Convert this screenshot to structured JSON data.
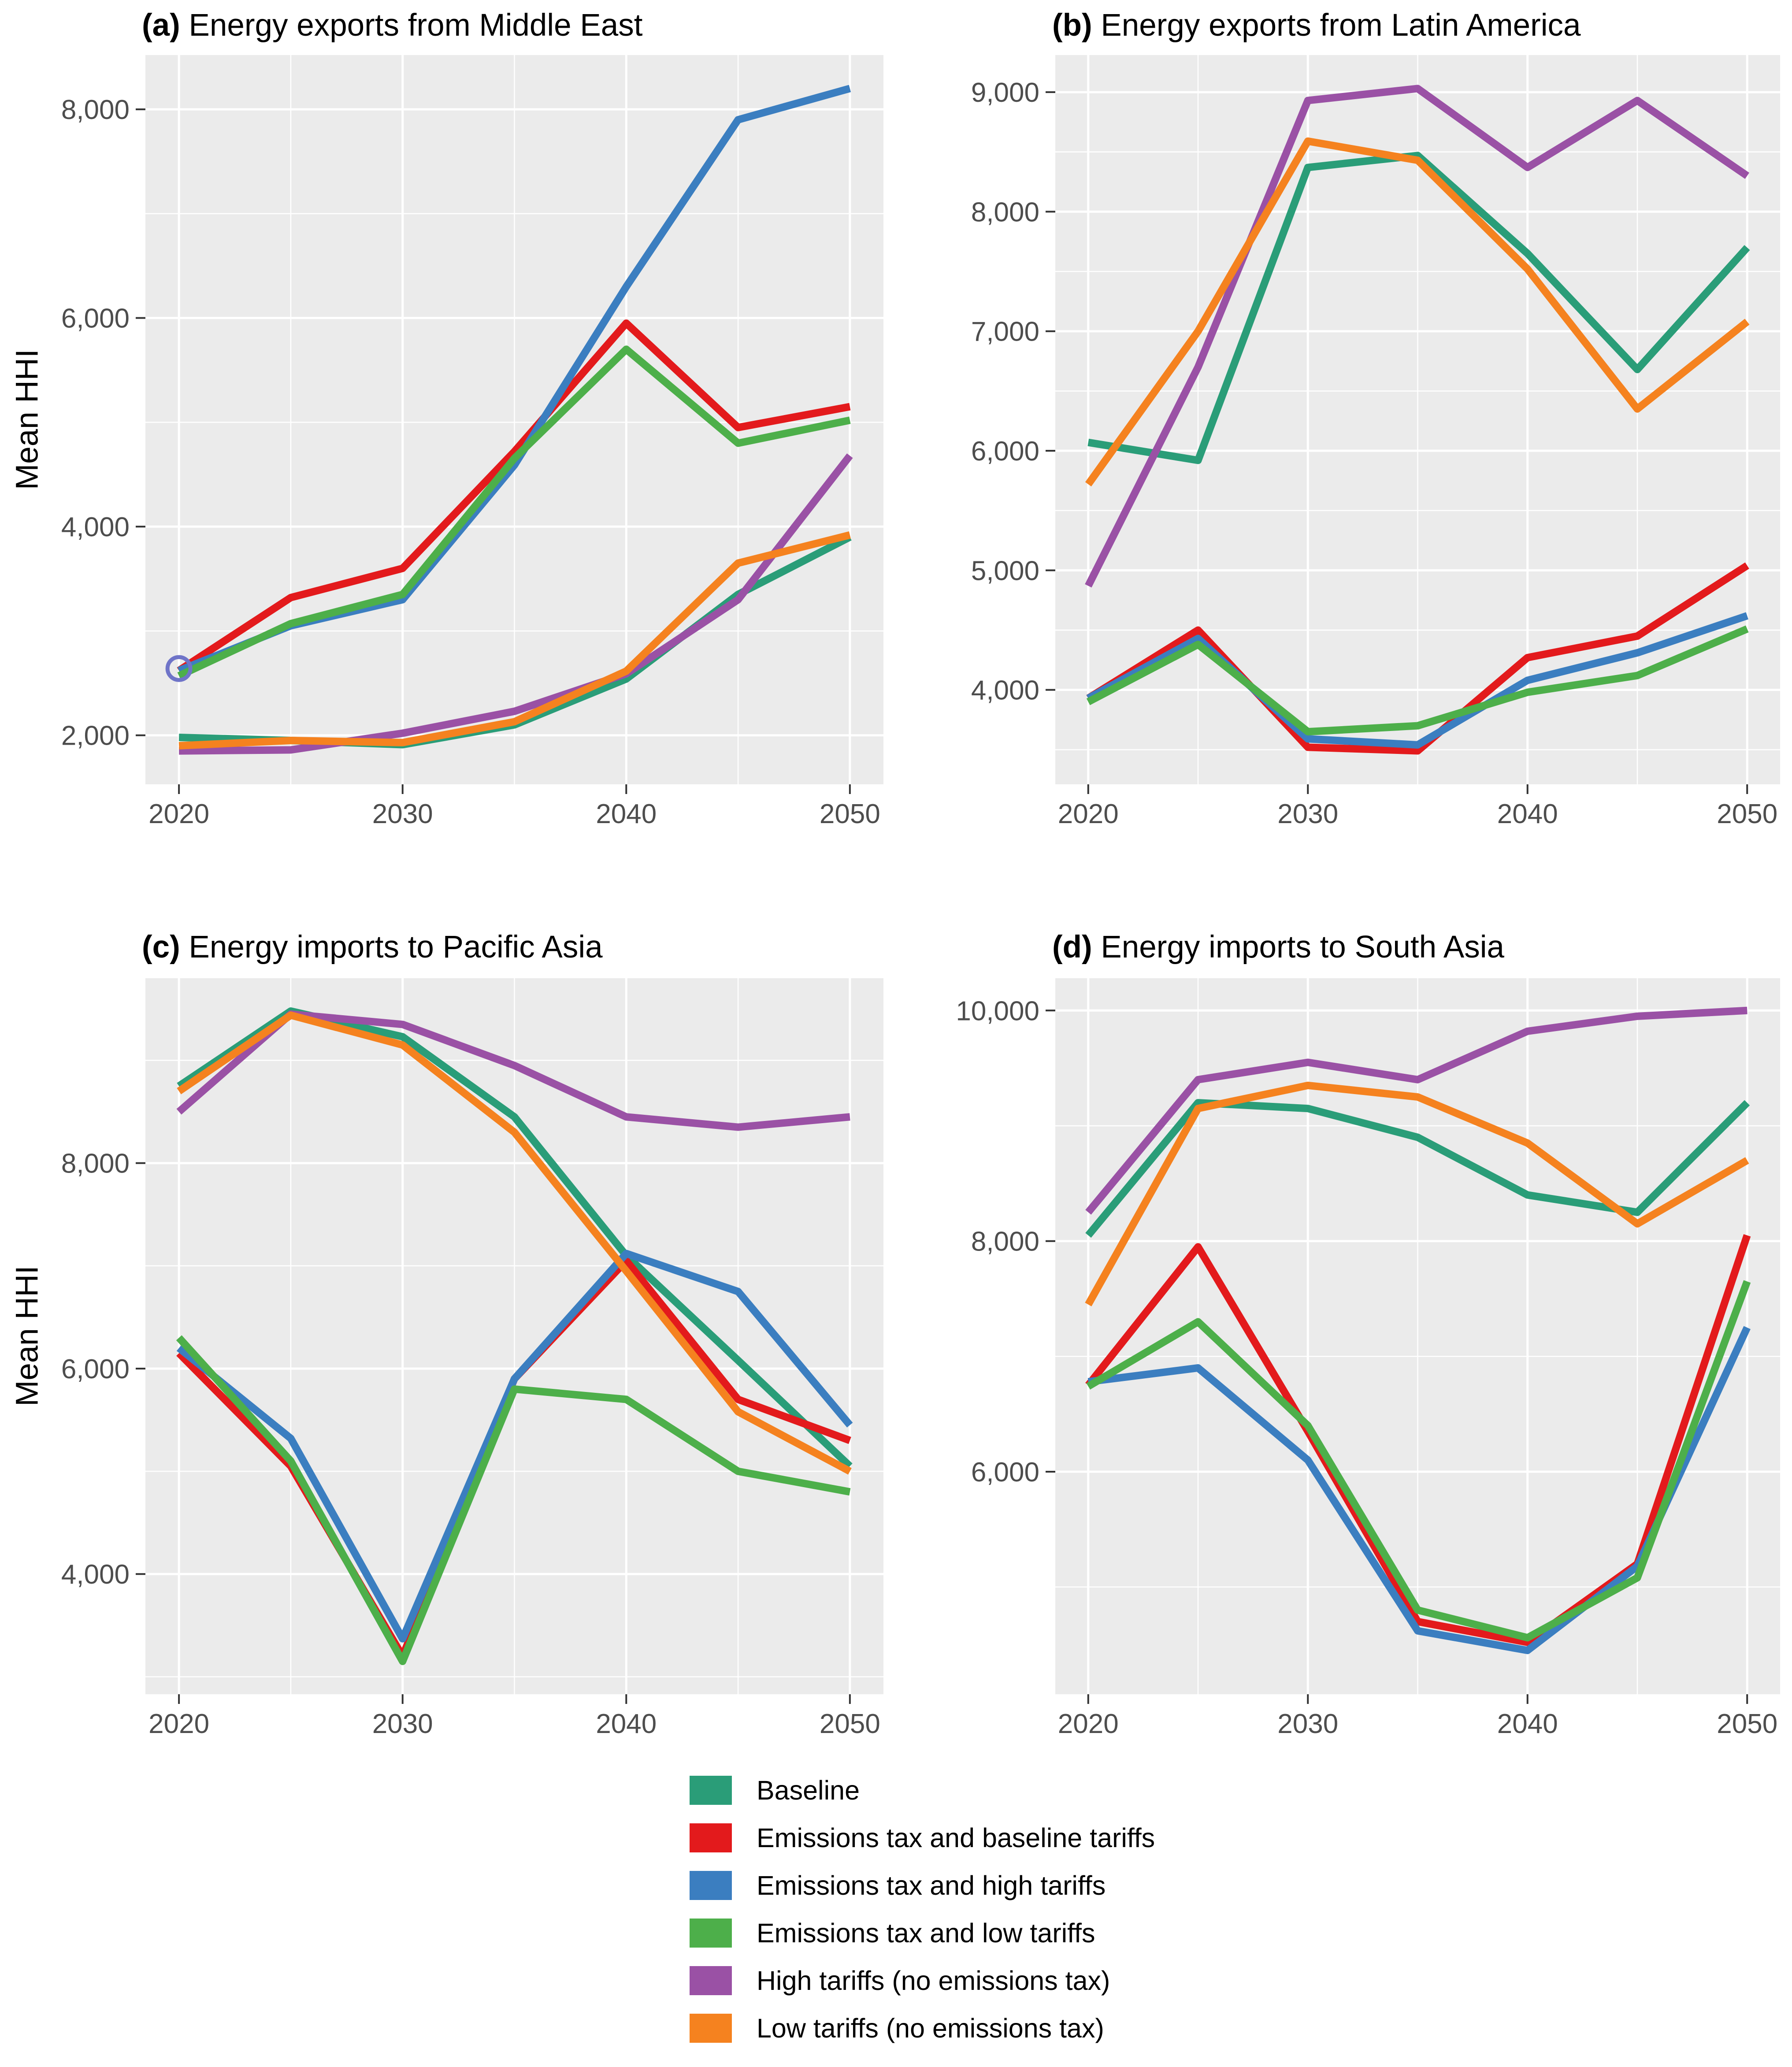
{
  "figure": {
    "ylabel": "Mean HHI"
  },
  "colors": {
    "baseline": "#2A9D78",
    "tax_base": "#E31A1C",
    "tax_high": "#3B7EC0",
    "tax_low": "#4DAF4A",
    "high": "#9A51A5",
    "low": "#F5821F",
    "panel_bg": "#EBEBEB",
    "gridline": "#FFFFFF",
    "tick_text": "#4D4D4D",
    "tick_mark": "#333333",
    "stray_marker": "#6F74C8"
  },
  "legend": {
    "items": [
      {
        "label": "Baseline",
        "color_key": "baseline"
      },
      {
        "label": "Emissions tax and baseline tariffs",
        "color_key": "tax_base"
      },
      {
        "label": "Emissions tax and high tariffs",
        "color_key": "tax_high"
      },
      {
        "label": "Emissions tax and low tariffs",
        "color_key": "tax_low"
      },
      {
        "label": "High tariffs (no emissions tax)",
        "color_key": "high"
      },
      {
        "label": "Low tariffs (no emissions tax)",
        "color_key": "low"
      }
    ]
  },
  "chart_data": [
    {
      "type": "line",
      "title_prefix": "(a)",
      "title": "Energy exports from Middle East",
      "ylabel": "Mean HHI",
      "x": [
        2020,
        2025,
        2030,
        2035,
        2040,
        2045,
        2050
      ],
      "xlim": [
        2018.5,
        2051.5
      ],
      "ylim": [
        1530,
        8520
      ],
      "x_ticks": [
        {
          "v": 2020,
          "label": "2020"
        },
        {
          "v": 2030,
          "label": "2030"
        },
        {
          "v": 2040,
          "label": "2040"
        },
        {
          "v": 2050,
          "label": "2050"
        }
      ],
      "x_minor": [
        2025,
        2035,
        2045
      ],
      "y_ticks": [
        {
          "v": 2000,
          "label": "2,000"
        },
        {
          "v": 4000,
          "label": "4,000"
        },
        {
          "v": 6000,
          "label": "6,000"
        },
        {
          "v": 8000,
          "label": "8,000"
        }
      ],
      "y_minor": [
        3000,
        5000,
        7000
      ],
      "series": [
        {
          "name": "Baseline",
          "color_key": "baseline",
          "values": [
            1980,
            1950,
            1910,
            2100,
            2540,
            3350,
            3900
          ]
        },
        {
          "name": "Emissions tax and baseline tariffs",
          "color_key": "tax_base",
          "values": [
            2620,
            3320,
            3600,
            4720,
            5950,
            4950,
            5150
          ]
        },
        {
          "name": "Emissions tax and high tariffs",
          "color_key": "tax_high",
          "values": [
            2620,
            3050,
            3300,
            4590,
            6300,
            7900,
            8200
          ]
        },
        {
          "name": "Emissions tax and low tariffs",
          "color_key": "tax_low",
          "values": [
            2570,
            3070,
            3350,
            4655,
            5700,
            4800,
            5020
          ]
        },
        {
          "name": "High tariffs (no emissions tax)",
          "color_key": "high",
          "values": [
            1850,
            1860,
            2020,
            2230,
            2590,
            3300,
            4680
          ]
        },
        {
          "name": "Low tariffs (no emissions tax)",
          "color_key": "low",
          "values": [
            1900,
            1950,
            1930,
            2130,
            2615,
            3650,
            3920
          ]
        }
      ],
      "marker": {
        "x": 2020,
        "y": 2640,
        "radius": 26
      }
    },
    {
      "type": "line",
      "title_prefix": "(b)",
      "title": "Energy exports from Latin America",
      "ylabel": "Mean HHI",
      "x": [
        2020,
        2025,
        2030,
        2035,
        2040,
        2045,
        2050
      ],
      "xlim": [
        2018.5,
        2051.5
      ],
      "ylim": [
        3210,
        9310
      ],
      "x_ticks": [
        {
          "v": 2020,
          "label": "2020"
        },
        {
          "v": 2030,
          "label": "2030"
        },
        {
          "v": 2040,
          "label": "2040"
        },
        {
          "v": 2050,
          "label": "2050"
        }
      ],
      "x_minor": [
        2025,
        2035,
        2045
      ],
      "y_ticks": [
        {
          "v": 4000,
          "label": "4,000"
        },
        {
          "v": 5000,
          "label": "5,000"
        },
        {
          "v": 6000,
          "label": "6,000"
        },
        {
          "v": 7000,
          "label": "7,000"
        },
        {
          "v": 8000,
          "label": "8,000"
        },
        {
          "v": 9000,
          "label": "9,000"
        }
      ],
      "y_minor": [
        3500,
        4500,
        5500,
        6500,
        7500,
        8500
      ],
      "series": [
        {
          "name": "Baseline",
          "color_key": "baseline",
          "values": [
            6070,
            5920,
            8370,
            8470,
            7650,
            6680,
            7700
          ]
        },
        {
          "name": "Emissions tax and baseline tariffs",
          "color_key": "tax_base",
          "values": [
            3930,
            4500,
            3520,
            3490,
            4270,
            4450,
            5040
          ]
        },
        {
          "name": "Emissions tax and high tariffs",
          "color_key": "tax_high",
          "values": [
            3930,
            4430,
            3590,
            3540,
            4080,
            4310,
            4620
          ]
        },
        {
          "name": "Emissions tax and low tariffs",
          "color_key": "tax_low",
          "values": [
            3900,
            4380,
            3650,
            3700,
            3980,
            4120,
            4510
          ]
        },
        {
          "name": "High tariffs (no emissions tax)",
          "color_key": "high",
          "values": [
            4870,
            6700,
            8930,
            9030,
            8370,
            8930,
            8300
          ]
        },
        {
          "name": "Low tariffs (no emissions tax)",
          "color_key": "low",
          "values": [
            5720,
            7000,
            8590,
            8430,
            7520,
            6350,
            7080
          ]
        }
      ]
    },
    {
      "type": "line",
      "title_prefix": "(c)",
      "title": "Energy imports to Pacific Asia",
      "ylabel": "Mean HHI",
      "x": [
        2020,
        2025,
        2030,
        2035,
        2040,
        2045,
        2050
      ],
      "xlim": [
        2018.5,
        2051.5
      ],
      "ylim": [
        2830,
        9800
      ],
      "x_ticks": [
        {
          "v": 2020,
          "label": "2020"
        },
        {
          "v": 2030,
          "label": "2030"
        },
        {
          "v": 2040,
          "label": "2040"
        },
        {
          "v": 2050,
          "label": "2050"
        }
      ],
      "x_minor": [
        2025,
        2035,
        2045
      ],
      "y_ticks": [
        {
          "v": 4000,
          "label": "4,000"
        },
        {
          "v": 6000,
          "label": "6,000"
        },
        {
          "v": 8000,
          "label": "8,000"
        }
      ],
      "y_minor": [
        3000,
        5000,
        7000,
        9000
      ],
      "series": [
        {
          "name": "Baseline",
          "color_key": "baseline",
          "values": [
            8750,
            9480,
            9230,
            8450,
            7100,
            6080,
            5050
          ]
        },
        {
          "name": "Emissions tax and baseline tariffs",
          "color_key": "tax_base",
          "values": [
            6150,
            5050,
            3200,
            5900,
            7050,
            5700,
            5300
          ]
        },
        {
          "name": "Emissions tax and high tariffs",
          "color_key": "tax_high",
          "values": [
            6200,
            5320,
            3370,
            5900,
            7120,
            6750,
            5450
          ]
        },
        {
          "name": "Emissions tax and low tariffs",
          "color_key": "tax_low",
          "values": [
            6300,
            5100,
            3150,
            5800,
            5700,
            5000,
            4800
          ]
        },
        {
          "name": "High tariffs (no emissions tax)",
          "color_key": "high",
          "values": [
            8500,
            9450,
            9350,
            8950,
            8450,
            8350,
            8450
          ]
        },
        {
          "name": "Low tariffs (no emissions tax)",
          "color_key": "low",
          "values": [
            8700,
            9440,
            9150,
            8300,
            6950,
            5580,
            5000
          ]
        }
      ]
    },
    {
      "type": "line",
      "title_prefix": "(d)",
      "title": "Energy imports to South Asia",
      "ylabel": "Mean HHI",
      "x": [
        2020,
        2025,
        2030,
        2035,
        2040,
        2045,
        2050
      ],
      "xlim": [
        2018.5,
        2051.5
      ],
      "ylim": [
        4070,
        10280
      ],
      "x_ticks": [
        {
          "v": 2020,
          "label": "2020"
        },
        {
          "v": 2030,
          "label": "2030"
        },
        {
          "v": 2040,
          "label": "2040"
        },
        {
          "v": 2050,
          "label": "2050"
        }
      ],
      "x_minor": [
        2025,
        2035,
        2045
      ],
      "y_ticks": [
        {
          "v": 6000,
          "label": "6,000"
        },
        {
          "v": 8000,
          "label": "8,000"
        },
        {
          "v": 10000,
          "label": "10,000"
        }
      ],
      "y_minor": [
        5000,
        7000,
        9000
      ],
      "series": [
        {
          "name": "Baseline",
          "color_key": "baseline",
          "values": [
            8050,
            9200,
            9150,
            8900,
            8400,
            8250,
            9200
          ]
        },
        {
          "name": "Emissions tax and baseline tariffs",
          "color_key": "tax_base",
          "values": [
            6750,
            7950,
            6350,
            4700,
            4520,
            5200,
            8050
          ]
        },
        {
          "name": "Emissions tax and high tariffs",
          "color_key": "tax_high",
          "values": [
            6780,
            6900,
            6100,
            4620,
            4450,
            5180,
            7250
          ]
        },
        {
          "name": "Emissions tax and low tariffs",
          "color_key": "tax_low",
          "values": [
            6740,
            7300,
            6400,
            4800,
            4560,
            5080,
            7650
          ]
        },
        {
          "name": "High tariffs (no emissions tax)",
          "color_key": "high",
          "values": [
            8250,
            9400,
            9550,
            9400,
            9820,
            9950,
            10000
          ]
        },
        {
          "name": "Low tariffs (no emissions tax)",
          "color_key": "low",
          "values": [
            7450,
            9150,
            9350,
            9250,
            8850,
            8150,
            8700
          ]
        }
      ]
    }
  ]
}
